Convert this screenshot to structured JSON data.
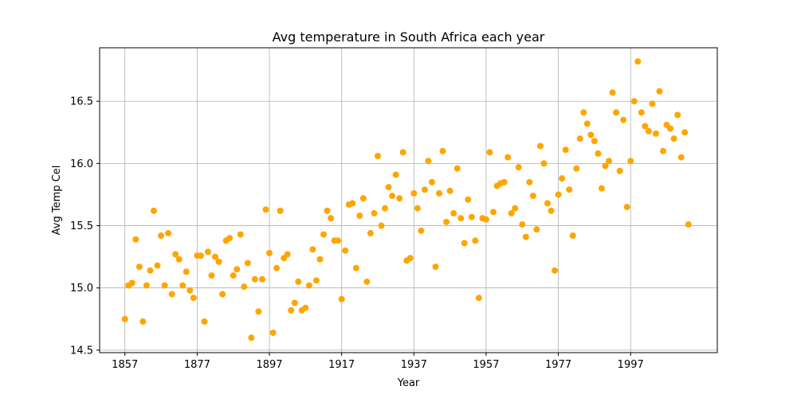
{
  "chart_data": {
    "type": "scatter",
    "title": "Avg temperature in South Africa each year",
    "xlabel": "Year",
    "ylabel": "Avg Temp Cel",
    "xlim": [
      1850,
      2021
    ],
    "ylim": [
      14.48,
      16.93
    ],
    "xticks": [
      1857,
      1877,
      1897,
      1917,
      1937,
      1957,
      1977,
      1997
    ],
    "yticks": [
      14.5,
      15.0,
      15.5,
      16.0,
      16.5
    ],
    "ytick_labels": [
      "14.5",
      "15.0",
      "15.5",
      "16.0",
      "16.5"
    ],
    "grid": true,
    "marker_color": "#ffa500",
    "x": [
      1857,
      1858,
      1859,
      1860,
      1861,
      1862,
      1863,
      1864,
      1865,
      1866,
      1867,
      1868,
      1869,
      1870,
      1871,
      1872,
      1873,
      1874,
      1875,
      1876,
      1877,
      1878,
      1879,
      1880,
      1881,
      1882,
      1883,
      1884,
      1885,
      1886,
      1887,
      1888,
      1889,
      1890,
      1891,
      1892,
      1893,
      1894,
      1895,
      1896,
      1897,
      1898,
      1899,
      1900,
      1901,
      1902,
      1903,
      1904,
      1905,
      1906,
      1907,
      1908,
      1909,
      1910,
      1911,
      1912,
      1913,
      1914,
      1915,
      1916,
      1917,
      1918,
      1919,
      1920,
      1921,
      1922,
      1923,
      1924,
      1925,
      1926,
      1927,
      1928,
      1929,
      1930,
      1931,
      1932,
      1933,
      1934,
      1935,
      1936,
      1937,
      1938,
      1939,
      1940,
      1941,
      1942,
      1943,
      1944,
      1945,
      1946,
      1947,
      1948,
      1949,
      1950,
      1951,
      1952,
      1953,
      1954,
      1955,
      1956,
      1957,
      1958,
      1959,
      1960,
      1961,
      1962,
      1963,
      1964,
      1965,
      1966,
      1967,
      1968,
      1969,
      1970,
      1971,
      1972,
      1973,
      1974,
      1975,
      1976,
      1977,
      1978,
      1979,
      1980,
      1981,
      1982,
      1983,
      1984,
      1985,
      1986,
      1987,
      1988,
      1989,
      1990,
      1991,
      1992,
      1993,
      1994,
      1995,
      1996,
      1997,
      1998,
      1999,
      2000,
      2001,
      2002,
      2003,
      2004,
      2005,
      2006,
      2007,
      2008,
      2009,
      2010,
      2011,
      2012,
      2013
    ],
    "values": [
      14.75,
      15.02,
      15.04,
      15.39,
      15.17,
      14.73,
      15.02,
      15.14,
      15.62,
      15.18,
      15.42,
      15.02,
      15.44,
      14.95,
      15.27,
      15.23,
      15.02,
      15.13,
      14.98,
      14.92,
      15.26,
      15.26,
      14.73,
      15.29,
      15.1,
      15.25,
      15.21,
      14.95,
      15.38,
      15.4,
      15.1,
      15.15,
      15.43,
      15.01,
      15.2,
      14.6,
      15.07,
      14.81,
      15.07,
      15.63,
      15.28,
      14.64,
      15.16,
      15.62,
      15.24,
      15.27,
      14.82,
      14.88,
      15.05,
      14.82,
      14.84,
      15.02,
      15.31,
      15.06,
      15.23,
      15.43,
      15.62,
      15.56,
      15.38,
      15.38,
      14.91,
      15.3,
      15.67,
      15.68,
      15.16,
      15.58,
      15.72,
      15.05,
      15.44,
      15.6,
      16.06,
      15.5,
      15.64,
      15.81,
      15.74,
      15.91,
      15.72,
      16.09,
      15.22,
      15.24,
      15.76,
      15.64,
      15.46,
      15.79,
      16.02,
      15.85,
      15.17,
      15.76,
      16.1,
      15.53,
      15.78,
      15.6,
      15.96,
      15.56,
      15.36,
      15.71,
      15.57,
      15.38,
      14.92,
      15.56,
      15.55,
      16.09,
      15.61,
      15.82,
      15.84,
      15.85,
      16.05,
      15.6,
      15.64,
      15.97,
      15.51,
      15.41,
      15.85,
      15.74,
      15.47,
      16.14,
      16.0,
      15.68,
      15.62,
      15.14,
      15.75,
      15.88,
      16.11,
      15.79,
      15.42,
      15.96,
      16.2,
      16.41,
      16.32,
      16.23,
      16.18,
      16.08,
      15.8,
      15.98,
      16.02,
      16.57,
      16.41,
      15.94,
      16.35,
      15.65,
      16.02,
      16.5,
      16.82,
      16.41,
      16.3,
      16.26,
      16.48,
      16.24,
      16.58,
      16.1,
      16.31,
      16.28,
      16.2,
      16.39,
      16.05,
      16.25,
      15.51
    ]
  }
}
